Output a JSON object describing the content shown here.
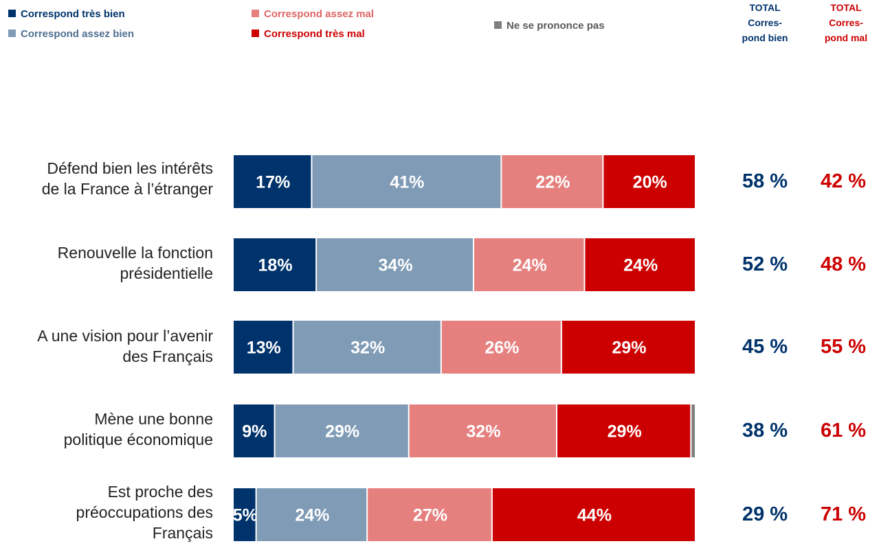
{
  "legend": {
    "tres_bien": {
      "label": "Correspond très bien",
      "color": "#00336b"
    },
    "assez_bien": {
      "label": "Correspond assez bien",
      "color": "#7f9bb5"
    },
    "assez_mal": {
      "label": "Correspond assez mal",
      "color": "#e5807f"
    },
    "tres_mal": {
      "label": "Correspond très mal",
      "color": "#cc0001"
    },
    "nsp": {
      "label": "Ne se prononce pas",
      "color": "#7f7f7f"
    }
  },
  "headers": {
    "total_bien": [
      "TOTAL",
      "Corres-",
      "pond bien"
    ],
    "total_mal": [
      "TOTAL",
      "Corres-",
      "pond mal"
    ]
  },
  "chart_data": {
    "type": "bar",
    "orientation": "horizontal",
    "stacked": true,
    "categories": [
      [
        "Défend bien les intérêts",
        "de la France à l’étranger"
      ],
      [
        "Renouvelle la fonction",
        "présidentielle"
      ],
      [
        "A une vision pour l’avenir",
        "des Français"
      ],
      [
        "Mène une bonne",
        "politique économique"
      ],
      [
        "Est proche des",
        "préoccupations des",
        "Français"
      ]
    ],
    "series": [
      {
        "name": "Correspond très bien",
        "color": "#00336b",
        "values": [
          17,
          18,
          13,
          9,
          5
        ],
        "labels": [
          "17%",
          "18%",
          "13%",
          "9%",
          "5%"
        ]
      },
      {
        "name": "Correspond assez bien",
        "color": "#7f9bb5",
        "values": [
          41,
          34,
          32,
          29,
          24
        ],
        "labels": [
          "41%",
          "34%",
          "32%",
          "29%",
          "24%"
        ]
      },
      {
        "name": "Correspond assez mal",
        "color": "#e5807f",
        "values": [
          22,
          24,
          26,
          32,
          27
        ],
        "labels": [
          "22%",
          "24%",
          "26%",
          "32%",
          "27%"
        ]
      },
      {
        "name": "Correspond très mal",
        "color": "#cc0001",
        "values": [
          20,
          24,
          29,
          29,
          44
        ],
        "labels": [
          "20%",
          "24%",
          "29%",
          "29%",
          "44%"
        ]
      },
      {
        "name": "Ne se prononce pas",
        "color": "#7f7f7f",
        "values": [
          0,
          0,
          0,
          1,
          0
        ],
        "labels": [
          "",
          "",
          "",
          "",
          ""
        ]
      }
    ],
    "totals_bien": [
      "58 %",
      "52 %",
      "45 %",
      "38 %",
      "29 %"
    ],
    "totals_mal": [
      "42 %",
      "48 %",
      "55 %",
      "61 %",
      "71 %"
    ],
    "xlim": [
      0,
      100
    ]
  }
}
